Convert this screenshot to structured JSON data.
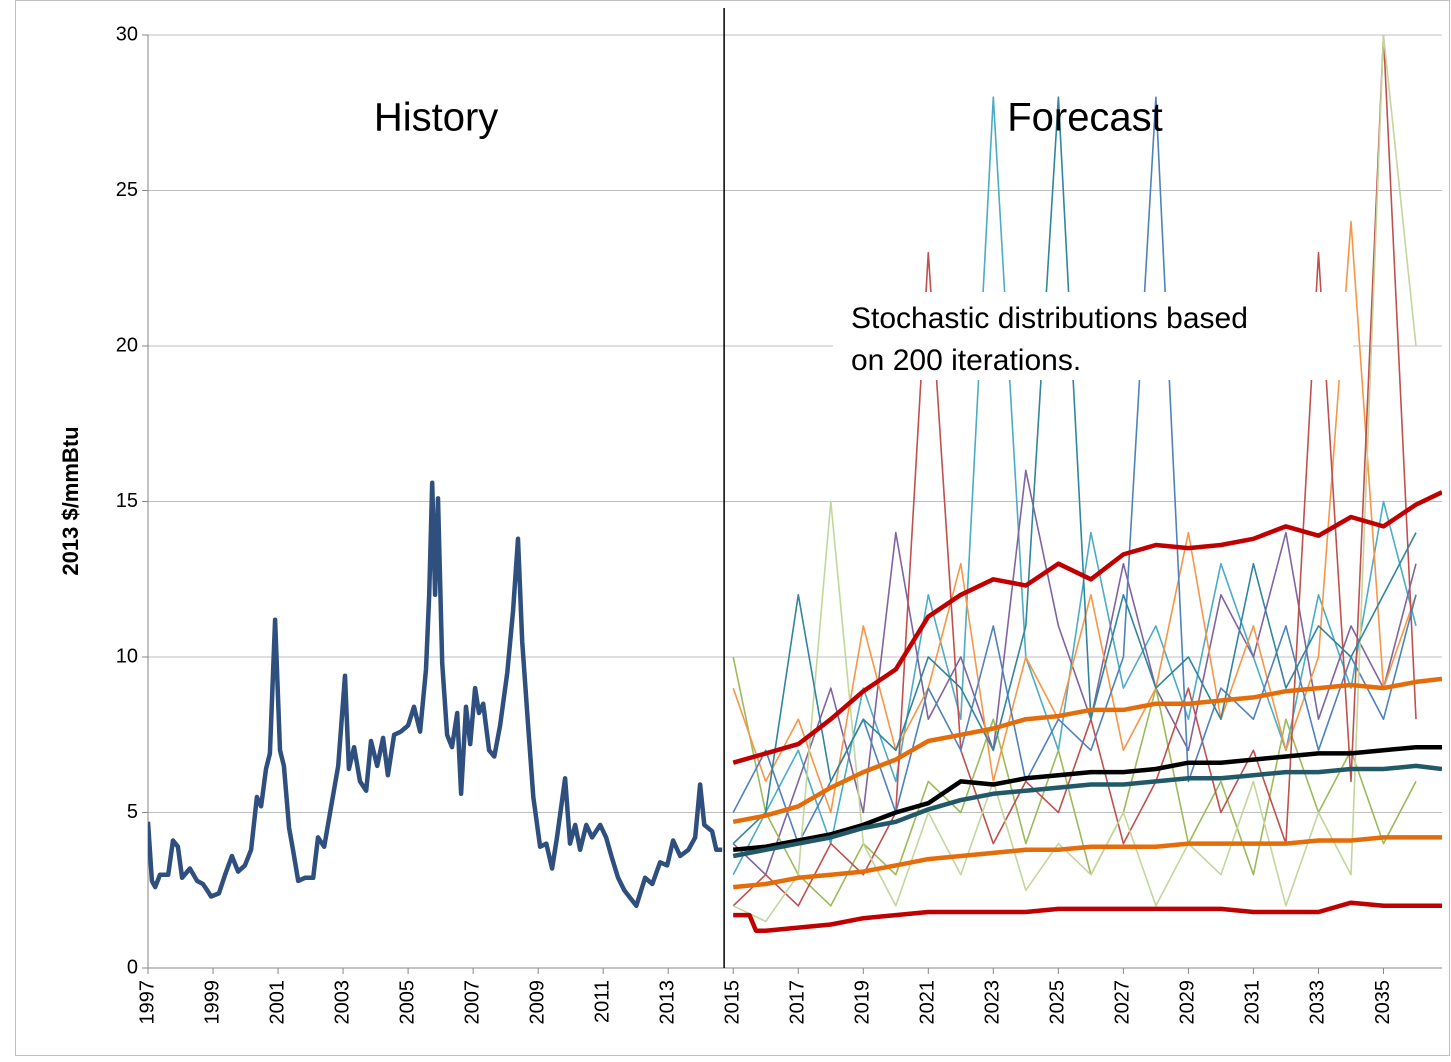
{
  "chart_data": {
    "type": "line",
    "y_label": "2013 $/mmBtu",
    "section_labels": [
      "History",
      "Forecast"
    ],
    "annotation": [
      "Stochastic distributions based",
      "on 200 iterations."
    ],
    "divider_x": 2014.72,
    "xlim": [
      1997,
      2036.8
    ],
    "xticks": [
      1997,
      1999,
      2001,
      2003,
      2005,
      2007,
      2009,
      2011,
      2013,
      2015,
      2017,
      2019,
      2021,
      2023,
      2025,
      2027,
      2029,
      2031,
      2033,
      2035
    ],
    "ylim": [
      0,
      30
    ],
    "yticks": [
      0,
      5,
      10,
      15,
      20,
      25,
      30
    ],
    "grid": true,
    "series": [
      {
        "color": "#4bacc6",
        "emphasis": false,
        "x": [
          2015,
          2016,
          2017,
          2018,
          2019,
          2020,
          2021,
          2022,
          2023,
          2024,
          2025,
          2026,
          2027,
          2028,
          2029,
          2030,
          2031,
          2032,
          2033,
          2034,
          2035,
          2036
        ],
        "values": [
          3,
          5,
          7,
          4,
          9,
          6,
          12,
          8,
          28,
          10,
          7,
          14,
          9,
          11,
          8,
          13,
          10,
          7,
          12,
          9,
          15,
          11
        ]
      },
      {
        "color": "#8064a2",
        "emphasis": false,
        "x": [
          2015,
          2016,
          2017,
          2018,
          2019,
          2020,
          2021,
          2022,
          2023,
          2024,
          2025,
          2026,
          2027,
          2028,
          2029,
          2030,
          2031,
          2032,
          2033,
          2034,
          2035,
          2036
        ],
        "values": [
          4,
          3,
          6,
          9,
          5,
          14,
          8,
          10,
          7,
          16,
          11,
          8,
          13,
          9,
          7,
          12,
          10,
          14,
          8,
          11,
          9,
          13
        ]
      },
      {
        "color": "#9bbb59",
        "emphasis": false,
        "x": [
          2015,
          2016,
          2017,
          2018,
          2019,
          2020,
          2021,
          2022,
          2023,
          2024,
          2025,
          2026,
          2027,
          2028,
          2029,
          2030,
          2031,
          2032,
          2033,
          2034,
          2035,
          2036
        ],
        "values": [
          10,
          5,
          3,
          2,
          4,
          3,
          6,
          5,
          8,
          4,
          7,
          3,
          5,
          9,
          4,
          6,
          3,
          8,
          5,
          7,
          4,
          6
        ]
      },
      {
        "color": "#f79646",
        "emphasis": false,
        "x": [
          2015,
          2016,
          2017,
          2018,
          2019,
          2020,
          2021,
          2022,
          2023,
          2024,
          2025,
          2026,
          2027,
          2028,
          2029,
          2030,
          2031,
          2032,
          2033,
          2034,
          2035,
          2036
        ],
        "values": [
          9,
          6,
          8,
          5,
          11,
          7,
          9,
          13,
          6,
          10,
          8,
          12,
          7,
          9,
          14,
          8,
          11,
          7,
          10,
          24,
          9,
          12
        ]
      },
      {
        "color": "#c0504d",
        "emphasis": false,
        "x": [
          2015,
          2016,
          2017,
          2018,
          2019,
          2020,
          2021,
          2022,
          2023,
          2024,
          2025,
          2026,
          2027,
          2028,
          2029,
          2030,
          2031,
          2032,
          2033,
          2034,
          2035,
          2036
        ],
        "values": [
          2,
          3,
          2,
          4,
          3,
          5,
          23,
          7,
          4,
          6,
          5,
          8,
          4,
          6,
          9,
          5,
          7,
          4,
          23,
          6,
          30,
          8
        ]
      },
      {
        "color": "#4f81bd",
        "emphasis": false,
        "x": [
          2015,
          2016,
          2017,
          2018,
          2019,
          2020,
          2021,
          2022,
          2023,
          2024,
          2025,
          2026,
          2027,
          2028,
          2029,
          2030,
          2031,
          2032,
          2033,
          2034,
          2035,
          2036
        ],
        "values": [
          5,
          7,
          4,
          6,
          8,
          5,
          9,
          7,
          11,
          6,
          8,
          7,
          10,
          28,
          6,
          9,
          8,
          11,
          7,
          10,
          8,
          12
        ]
      },
      {
        "color": "#c3d69b",
        "emphasis": false,
        "x": [
          2015,
          2016,
          2017,
          2018,
          2019,
          2020,
          2021,
          2022,
          2023,
          2024,
          2025,
          2026,
          2027,
          2028,
          2029,
          2030,
          2031,
          2032,
          2033,
          2034,
          2035,
          2036
        ],
        "values": [
          2,
          1.5,
          3,
          15,
          4,
          2,
          5,
          3,
          6,
          2.5,
          4,
          3,
          5,
          2,
          4,
          3,
          6,
          2,
          5,
          3,
          30,
          20
        ]
      },
      {
        "color": "#31859c",
        "emphasis": false,
        "x": [
          2015,
          2016,
          2017,
          2018,
          2019,
          2020,
          2021,
          2022,
          2023,
          2024,
          2025,
          2026,
          2027,
          2028,
          2029,
          2030,
          2031,
          2032,
          2033,
          2034,
          2035,
          2036
        ],
        "values": [
          4,
          5,
          12,
          6,
          8,
          7,
          10,
          9,
          7,
          11,
          28,
          8,
          12,
          9,
          10,
          8,
          13,
          9,
          11,
          10,
          12,
          14
        ]
      },
      {
        "color": "#2f4f7f",
        "emphasis": true,
        "x": [
          1997.0,
          1997.12,
          1997.22,
          1997.37,
          1997.62,
          1997.77,
          1997.92,
          1998.05,
          1998.29,
          1998.51,
          1998.69,
          1998.82,
          1998.94,
          1999.18,
          1999.37,
          1999.58,
          1999.77,
          1999.98,
          2000.17,
          2000.35,
          2000.48,
          2000.63,
          2000.75,
          2000.91,
          2001.06,
          2001.18,
          2001.34,
          2001.46,
          2001.62,
          2001.83,
          2002.08,
          2002.23,
          2002.42,
          2002.6,
          2002.85,
          2003.06,
          2003.18,
          2003.34,
          2003.52,
          2003.71,
          2003.86,
          2004.05,
          2004.23,
          2004.38,
          2004.57,
          2004.78,
          2005.0,
          2005.18,
          2005.37,
          2005.55,
          2005.65,
          2005.74,
          2005.83,
          2005.92,
          2006.05,
          2006.2,
          2006.35,
          2006.51,
          2006.63,
          2006.78,
          2006.91,
          2007.06,
          2007.18,
          2007.31,
          2007.49,
          2007.65,
          2007.83,
          2008.05,
          2008.23,
          2008.38,
          2008.51,
          2008.69,
          2008.85,
          2009.06,
          2009.25,
          2009.43,
          2009.58,
          2009.83,
          2009.98,
          2010.14,
          2010.29,
          2010.48,
          2010.66,
          2010.91,
          2011.09,
          2011.28,
          2011.46,
          2011.65,
          2012.02,
          2012.29,
          2012.51,
          2012.75,
          2012.97,
          2013.15,
          2013.37,
          2013.62,
          2013.83,
          2013.98,
          2014.11,
          2014.35,
          2014.48,
          2014.66
        ],
        "values": [
          4.7,
          2.8,
          2.6,
          3.0,
          3.0,
          4.1,
          3.9,
          2.9,
          3.2,
          2.8,
          2.7,
          2.5,
          2.3,
          2.4,
          3.0,
          3.6,
          3.1,
          3.3,
          3.8,
          5.5,
          5.2,
          6.4,
          6.9,
          11.2,
          7.0,
          6.5,
          4.5,
          3.8,
          2.8,
          2.9,
          2.9,
          4.2,
          3.9,
          5.0,
          6.5,
          9.4,
          6.4,
          7.1,
          6.0,
          5.7,
          7.3,
          6.5,
          7.4,
          6.2,
          7.5,
          7.6,
          7.8,
          8.4,
          7.6,
          9.6,
          12.0,
          15.6,
          12.0,
          15.1,
          9.8,
          7.5,
          7.1,
          8.2,
          5.6,
          8.4,
          7.2,
          9.0,
          8.2,
          8.5,
          7.0,
          6.8,
          7.8,
          9.5,
          11.5,
          13.8,
          10.5,
          7.8,
          5.5,
          3.9,
          4.0,
          3.2,
          4.2,
          6.1,
          4.0,
          4.6,
          3.8,
          4.6,
          4.2,
          4.6,
          4.2,
          3.5,
          2.9,
          2.5,
          2.0,
          2.9,
          2.7,
          3.4,
          3.3,
          4.1,
          3.6,
          3.8,
          4.2,
          5.9,
          4.6,
          4.4,
          3.8,
          3.8
        ]
      },
      {
        "color": "#c00000",
        "emphasis": true,
        "x": [
          2015,
          2016,
          2017,
          2018,
          2019,
          2020,
          2021,
          2022,
          2023,
          2024,
          2025,
          2026,
          2027,
          2028,
          2029,
          2030,
          2031,
          2032,
          2033,
          2034,
          2035,
          2036,
          2036.8
        ],
        "values": [
          6.6,
          6.9,
          7.2,
          8.0,
          8.9,
          9.6,
          11.3,
          12.0,
          12.5,
          12.3,
          13.0,
          12.5,
          13.3,
          13.6,
          13.5,
          13.6,
          13.8,
          14.2,
          13.9,
          14.5,
          14.2,
          14.9,
          15.3
        ]
      },
      {
        "color": "#e46c0a",
        "emphasis": true,
        "x": [
          2015,
          2016,
          2017,
          2018,
          2019,
          2020,
          2021,
          2022,
          2023,
          2024,
          2025,
          2026,
          2027,
          2028,
          2029,
          2030,
          2031,
          2032,
          2033,
          2034,
          2035,
          2036,
          2036.8
        ],
        "values": [
          4.7,
          4.9,
          5.2,
          5.8,
          6.3,
          6.7,
          7.3,
          7.5,
          7.7,
          8.0,
          8.1,
          8.3,
          8.3,
          8.5,
          8.5,
          8.6,
          8.7,
          8.9,
          9.0,
          9.1,
          9.0,
          9.2,
          9.3
        ]
      },
      {
        "color": "#000000",
        "emphasis": true,
        "x": [
          2015,
          2016,
          2017,
          2018,
          2019,
          2020,
          2021,
          2022,
          2023,
          2024,
          2025,
          2026,
          2027,
          2028,
          2029,
          2030,
          2031,
          2032,
          2033,
          2034,
          2035,
          2036,
          2036.8
        ],
        "values": [
          3.8,
          3.9,
          4.1,
          4.3,
          4.6,
          5.0,
          5.3,
          6.0,
          5.9,
          6.1,
          6.2,
          6.3,
          6.3,
          6.4,
          6.6,
          6.6,
          6.7,
          6.8,
          6.9,
          6.9,
          7.0,
          7.1,
          7.1
        ]
      },
      {
        "color": "#215968",
        "emphasis": true,
        "x": [
          2015,
          2016,
          2017,
          2018,
          2019,
          2020,
          2021,
          2022,
          2023,
          2024,
          2025,
          2026,
          2027,
          2028,
          2029,
          2030,
          2031,
          2032,
          2033,
          2034,
          2035,
          2036,
          2036.8
        ],
        "values": [
          3.6,
          3.8,
          4.0,
          4.2,
          4.5,
          4.7,
          5.1,
          5.4,
          5.6,
          5.7,
          5.8,
          5.9,
          5.9,
          6.0,
          6.1,
          6.1,
          6.2,
          6.3,
          6.3,
          6.4,
          6.4,
          6.5,
          6.4
        ]
      },
      {
        "color": "#e46c0a",
        "emphasis": true,
        "x": [
          2015,
          2016,
          2017,
          2018,
          2019,
          2020,
          2021,
          2022,
          2023,
          2024,
          2025,
          2026,
          2027,
          2028,
          2029,
          2030,
          2031,
          2032,
          2033,
          2034,
          2035,
          2036,
          2036.8
        ],
        "values": [
          2.6,
          2.7,
          2.9,
          3.0,
          3.1,
          3.3,
          3.5,
          3.6,
          3.7,
          3.8,
          3.8,
          3.9,
          3.9,
          3.9,
          4.0,
          4.0,
          4.0,
          4.0,
          4.1,
          4.1,
          4.2,
          4.2,
          4.2
        ]
      },
      {
        "color": "#c00000",
        "emphasis": true,
        "x": [
          2015,
          2015.5,
          2015.7,
          2016,
          2017,
          2018,
          2019,
          2020,
          2021,
          2022,
          2023,
          2024,
          2025,
          2026,
          2027,
          2028,
          2029,
          2030,
          2031,
          2032,
          2033,
          2034,
          2035,
          2036,
          2036.8
        ],
        "values": [
          1.7,
          1.7,
          1.2,
          1.2,
          1.3,
          1.4,
          1.6,
          1.7,
          1.8,
          1.8,
          1.8,
          1.8,
          1.9,
          1.9,
          1.9,
          1.9,
          1.9,
          1.9,
          1.8,
          1.8,
          1.8,
          2.1,
          2.0,
          2.0,
          2.0
        ]
      }
    ]
  }
}
